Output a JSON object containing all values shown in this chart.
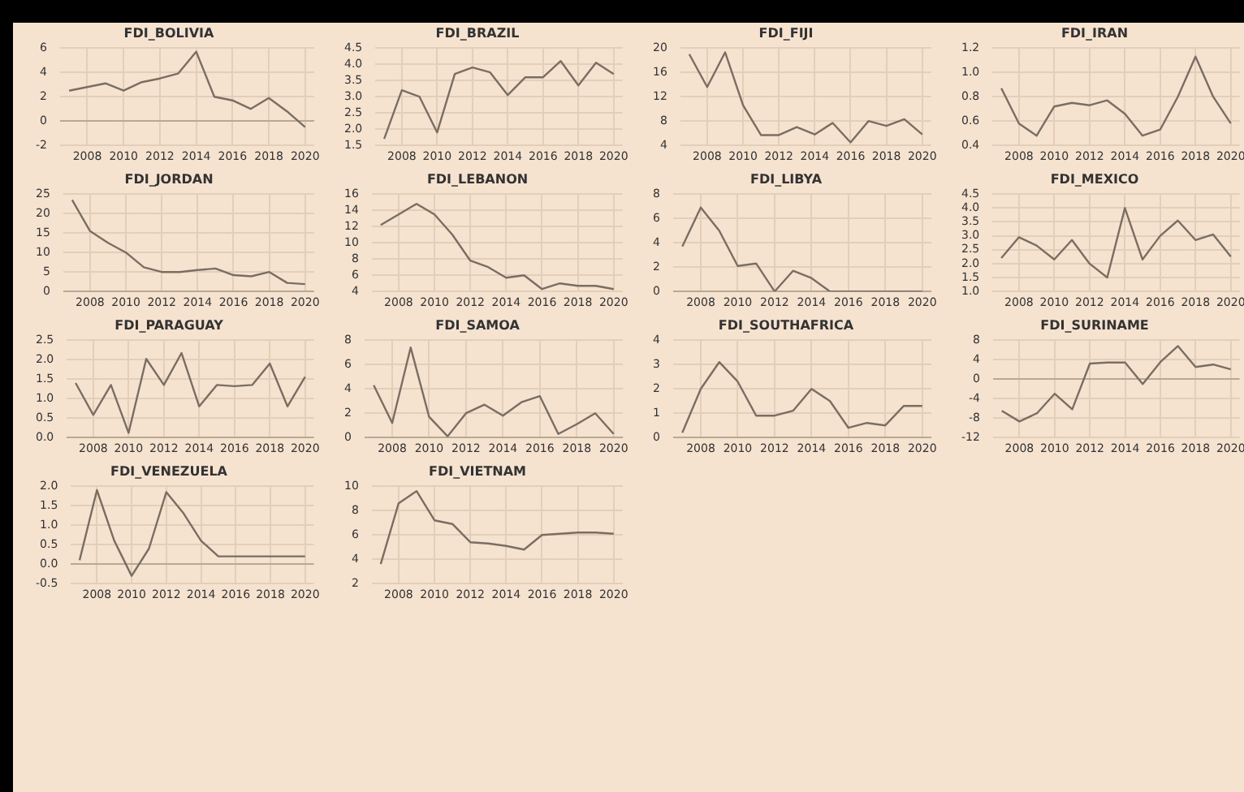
{
  "chart_data": [
    {
      "type": "line",
      "title": "FDI_BOLIVIA",
      "x": [
        2007,
        2008,
        2009,
        2010,
        2011,
        2012,
        2013,
        2014,
        2015,
        2016,
        2017,
        2018,
        2019,
        2020
      ],
      "values": [
        2.5,
        2.8,
        3.1,
        2.5,
        3.2,
        3.5,
        3.9,
        5.7,
        2.0,
        1.7,
        1.0,
        1.9,
        0.8,
        -0.5
      ],
      "color": "#7a6e62",
      "xlim": [
        2006.5,
        2020.5
      ],
      "xticks": [
        2008,
        2010,
        2012,
        2014,
        2016,
        2018,
        2020
      ],
      "ylim": [
        -2,
        6
      ],
      "yticks": [
        -2,
        0,
        2,
        4,
        6
      ],
      "grid": true
    },
    {
      "type": "line",
      "title": "FDI_BRAZIL",
      "x": [
        2007,
        2008,
        2009,
        2010,
        2011,
        2012,
        2013,
        2014,
        2015,
        2016,
        2017,
        2018,
        2019,
        2020
      ],
      "values": [
        1.7,
        3.2,
        3.0,
        1.9,
        3.7,
        3.9,
        3.75,
        3.05,
        3.6,
        3.6,
        4.1,
        3.35,
        4.05,
        3.7
      ],
      "color": "#7a6e62",
      "xlim": [
        2006.5,
        2020.5
      ],
      "xticks": [
        2008,
        2010,
        2012,
        2014,
        2016,
        2018,
        2020
      ],
      "ylim": [
        1.5,
        4.5
      ],
      "yticks": [
        {
          "value": 1.5,
          "label": "1.5"
        },
        {
          "value": 2,
          "label": "2.0"
        },
        {
          "value": 2.5,
          "label": "2.5"
        },
        {
          "value": 3,
          "label": "3.0"
        },
        {
          "value": 3.5,
          "label": "3.5"
        },
        {
          "value": 4,
          "label": "4.0"
        },
        {
          "value": 4.5,
          "label": "4.5"
        }
      ],
      "grid": true
    },
    {
      "type": "line",
      "title": "FDI_FIJI",
      "x": [
        2007,
        2008,
        2009,
        2010,
        2011,
        2012,
        2013,
        2014,
        2015,
        2016,
        2017,
        2018,
        2019,
        2020
      ],
      "values": [
        19,
        13.6,
        19.3,
        10.6,
        5.7,
        5.7,
        7,
        5.8,
        7.7,
        4.5,
        8,
        7.2,
        8.3,
        5.8
      ],
      "color": "#7a6e62",
      "xlim": [
        2006.5,
        2020.5
      ],
      "xticks": [
        2008,
        2010,
        2012,
        2014,
        2016,
        2018,
        2020
      ],
      "ylim": [
        4,
        20
      ],
      "yticks": [
        4,
        8,
        12,
        16,
        20
      ],
      "grid": true
    },
    {
      "type": "line",
      "title": "FDI_IRAN",
      "x": [
        2007,
        2008,
        2009,
        2010,
        2011,
        2012,
        2013,
        2014,
        2015,
        2016,
        2017,
        2018,
        2019,
        2020
      ],
      "values": [
        0.87,
        0.58,
        0.48,
        0.72,
        0.75,
        0.73,
        0.77,
        0.66,
        0.48,
        0.53,
        0.8,
        1.13,
        0.8,
        0.58
      ],
      "color": "#7a6e62",
      "xlim": [
        2006.5,
        2020.5
      ],
      "xticks": [
        2008,
        2010,
        2012,
        2014,
        2016,
        2018,
        2020
      ],
      "ylim": [
        0.4,
        1.2
      ],
      "yticks": [
        {
          "value": 0.4,
          "label": "0.4"
        },
        {
          "value": 0.6,
          "label": "0.6"
        },
        {
          "value": 0.8,
          "label": "0.8"
        },
        {
          "value": 1,
          "label": "1.0"
        },
        {
          "value": 1.2,
          "label": "1.2"
        }
      ],
      "grid": true
    },
    {
      "type": "line",
      "title": "FDI_JORDAN",
      "x": [
        2007,
        2008,
        2009,
        2010,
        2011,
        2012,
        2013,
        2014,
        2015,
        2016,
        2017,
        2018,
        2019,
        2020
      ],
      "values": [
        23.5,
        15.5,
        12.5,
        10,
        6.2,
        5,
        5,
        5.5,
        5.9,
        4.2,
        3.9,
        5,
        2.2,
        1.9
      ],
      "color": "#7a6e62",
      "xlim": [
        2006.5,
        2020.5
      ],
      "xticks": [
        2008,
        2010,
        2012,
        2014,
        2016,
        2018,
        2020
      ],
      "ylim": [
        0,
        25
      ],
      "yticks": [
        0,
        5,
        10,
        15,
        20,
        25
      ],
      "grid": true
    },
    {
      "type": "line",
      "title": "FDI_LEBANON",
      "x": [
        2007,
        2008,
        2009,
        2010,
        2011,
        2012,
        2013,
        2014,
        2015,
        2016,
        2017,
        2018,
        2019,
        2020
      ],
      "values": [
        12.2,
        13.5,
        14.8,
        13.5,
        11,
        7.8,
        7,
        5.7,
        6,
        4.3,
        5,
        4.7,
        4.7,
        4.3
      ],
      "color": "#7a6e62",
      "xlim": [
        2006.5,
        2020.5
      ],
      "xticks": [
        2008,
        2010,
        2012,
        2014,
        2016,
        2018,
        2020
      ],
      "ylim": [
        4,
        16
      ],
      "yticks": [
        4,
        6,
        8,
        10,
        12,
        14,
        16
      ],
      "grid": true
    },
    {
      "type": "line",
      "title": "FDI_LIBYA",
      "x": [
        2007,
        2008,
        2009,
        2010,
        2011,
        2012,
        2013,
        2014,
        2015,
        2016,
        2017,
        2018,
        2019,
        2020
      ],
      "values": [
        3.7,
        6.9,
        5.0,
        2.1,
        2.3,
        0,
        1.7,
        1.1,
        0,
        0,
        0,
        0,
        0,
        0
      ],
      "color": "#7a6e62",
      "xlim": [
        2006.5,
        2020.5
      ],
      "xticks": [
        2008,
        2010,
        2012,
        2014,
        2016,
        2018,
        2020
      ],
      "ylim": [
        0,
        8
      ],
      "yticks": [
        0,
        2,
        4,
        6,
        8
      ],
      "grid": true
    },
    {
      "type": "line",
      "title": "FDI_MEXICO",
      "x": [
        2007,
        2008,
        2009,
        2010,
        2011,
        2012,
        2013,
        2014,
        2015,
        2016,
        2017,
        2018,
        2019,
        2020
      ],
      "values": [
        2.2,
        2.95,
        2.65,
        2.15,
        2.85,
        2.0,
        1.5,
        4.0,
        2.15,
        3.0,
        3.55,
        2.85,
        3.05,
        2.25
      ],
      "color": "#7a6e62",
      "xlim": [
        2006.5,
        2020.5
      ],
      "xticks": [
        2008,
        2010,
        2012,
        2014,
        2016,
        2018,
        2020
      ],
      "ylim": [
        1,
        4.5
      ],
      "yticks": [
        {
          "value": 1,
          "label": "1.0"
        },
        {
          "value": 1.5,
          "label": "1.5"
        },
        {
          "value": 2,
          "label": "2.0"
        },
        {
          "value": 2.5,
          "label": "2.5"
        },
        {
          "value": 3,
          "label": "3.0"
        },
        {
          "value": 3.5,
          "label": "3.5"
        },
        {
          "value": 4,
          "label": "4.0"
        },
        {
          "value": 4.5,
          "label": "4.5"
        }
      ],
      "grid": true
    },
    {
      "type": "line",
      "title": "FDI_PARAGUAY",
      "x": [
        2007,
        2008,
        2009,
        2010,
        2011,
        2012,
        2013,
        2014,
        2015,
        2016,
        2017,
        2018,
        2019,
        2020
      ],
      "values": [
        1.4,
        0.58,
        1.35,
        0.12,
        2.02,
        1.35,
        2.17,
        0.8,
        1.35,
        1.32,
        1.35,
        1.9,
        0.8,
        1.56
      ],
      "color": "#7a6e62",
      "xlim": [
        2006.5,
        2020.5
      ],
      "xticks": [
        2008,
        2010,
        2012,
        2014,
        2016,
        2018,
        2020
      ],
      "ylim": [
        0,
        2.5
      ],
      "yticks": [
        {
          "value": 0,
          "label": "0.0"
        },
        {
          "value": 0.5,
          "label": "0.5"
        },
        {
          "value": 1,
          "label": "1.0"
        },
        {
          "value": 1.5,
          "label": "1.5"
        },
        {
          "value": 2,
          "label": "2.0"
        },
        {
          "value": 2.5,
          "label": "2.5"
        }
      ],
      "grid": true
    },
    {
      "type": "line",
      "title": "FDI_SAMOA",
      "x": [
        2007,
        2008,
        2009,
        2010,
        2011,
        2012,
        2013,
        2014,
        2015,
        2016,
        2017,
        2018,
        2019,
        2020
      ],
      "values": [
        4.3,
        1.2,
        7.4,
        1.7,
        0.1,
        2.0,
        2.7,
        1.8,
        2.9,
        3.4,
        0.3,
        1.1,
        2.0,
        0.3
      ],
      "color": "#7a6e62",
      "xlim": [
        2006.5,
        2020.5
      ],
      "xticks": [
        2008,
        2010,
        2012,
        2014,
        2016,
        2018,
        2020
      ],
      "ylim": [
        0,
        8
      ],
      "yticks": [
        0,
        2,
        4,
        6,
        8
      ],
      "grid": true
    },
    {
      "type": "line",
      "title": "FDI_SOUTHAFRICA",
      "x": [
        2007,
        2008,
        2009,
        2010,
        2011,
        2012,
        2013,
        2014,
        2015,
        2016,
        2017,
        2018,
        2019,
        2020
      ],
      "values": [
        0.2,
        2.0,
        3.1,
        2.3,
        0.9,
        0.9,
        1.1,
        2.0,
        1.5,
        0.4,
        0.6,
        0.5,
        1.3,
        1.3
      ],
      "color": "#7a6e62",
      "xlim": [
        2006.5,
        2020.5
      ],
      "xticks": [
        2008,
        2010,
        2012,
        2014,
        2016,
        2018,
        2020
      ],
      "ylim": [
        0,
        4
      ],
      "yticks": [
        0,
        1,
        2,
        3,
        4
      ],
      "grid": true
    },
    {
      "type": "line",
      "title": "FDI_SURINAME",
      "x": [
        2007,
        2008,
        2009,
        2010,
        2011,
        2012,
        2013,
        2014,
        2015,
        2016,
        2017,
        2018,
        2019,
        2020
      ],
      "values": [
        -6.5,
        -8.7,
        -7,
        -3,
        -6.2,
        3.2,
        3.4,
        3.4,
        -1,
        3.5,
        6.8,
        2.5,
        3,
        2.0
      ],
      "color": "#7a6e62",
      "xlim": [
        2006.5,
        2020.5
      ],
      "xticks": [
        2008,
        2010,
        2012,
        2014,
        2016,
        2018,
        2020
      ],
      "ylim": [
        -12,
        8
      ],
      "yticks": [
        -12,
        -8,
        -4,
        0,
        4,
        8
      ],
      "grid": true
    },
    {
      "type": "line",
      "title": "FDI_VENEZUELA",
      "x": [
        2007,
        2008,
        2009,
        2010,
        2011,
        2012,
        2013,
        2014,
        2015,
        2016,
        2017,
        2018,
        2019,
        2020
      ],
      "values": [
        0.1,
        1.9,
        0.6,
        -0.3,
        0.4,
        1.85,
        1.3,
        0.6,
        0.2,
        0.2,
        0.2,
        0.2,
        0.2,
        0.2
      ],
      "color": "#7a6e62",
      "xlim": [
        2006.5,
        2020.5
      ],
      "xticks": [
        2008,
        2010,
        2012,
        2014,
        2016,
        2018,
        2020
      ],
      "ylim": [
        -0.5,
        2
      ],
      "yticks": [
        -0.5,
        {
          "value": 0,
          "label": "0.0"
        },
        0.5,
        {
          "value": 1,
          "label": "1.0"
        },
        1.5,
        {
          "value": 2,
          "label": "2.0"
        }
      ],
      "grid": true
    },
    {
      "type": "line",
      "title": "FDI_VIETNAM",
      "x": [
        2007,
        2008,
        2009,
        2010,
        2011,
        2012,
        2013,
        2014,
        2015,
        2016,
        2017,
        2018,
        2019,
        2020
      ],
      "values": [
        3.6,
        8.6,
        9.6,
        7.2,
        6.9,
        5.4,
        5.3,
        5.1,
        4.8,
        6.0,
        6.1,
        6.2,
        6.2,
        6.1
      ],
      "color": "#7a6e62",
      "xlim": [
        2006.5,
        2020.5
      ],
      "xticks": [
        2008,
        2010,
        2012,
        2014,
        2016,
        2018,
        2020
      ],
      "ylim": [
        2,
        10
      ],
      "yticks": [
        2,
        4,
        6,
        8,
        10
      ],
      "grid": true
    }
  ]
}
